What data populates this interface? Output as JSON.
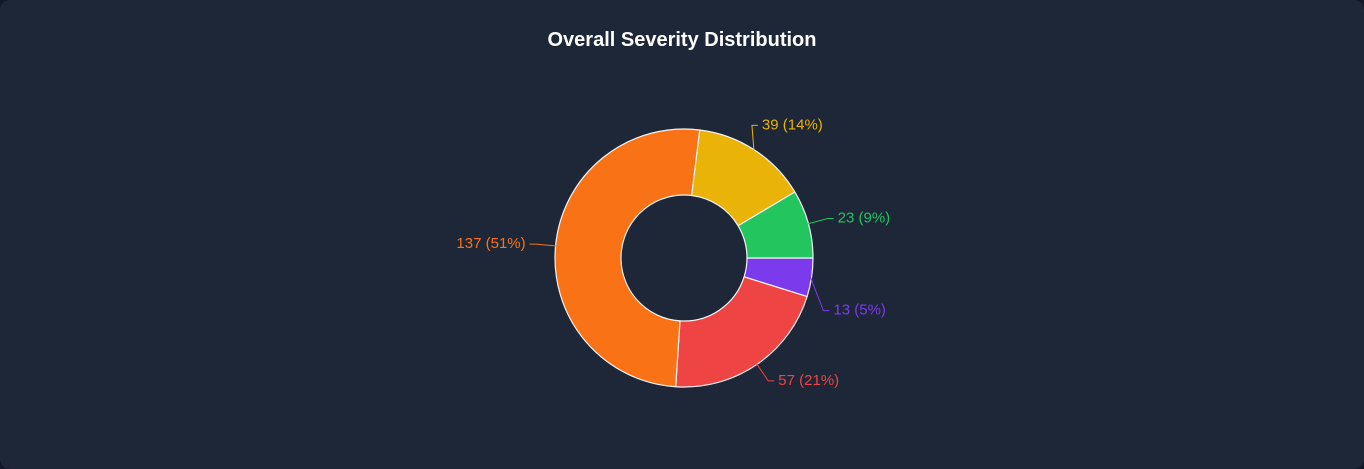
{
  "chart_data": {
    "type": "pie",
    "variant": "donut",
    "title": "Overall Severity Distribution",
    "legend": "none",
    "slices": [
      {
        "value": 13,
        "percent": 5,
        "label": "13 (5%)",
        "color": "#7c3aed"
      },
      {
        "value": 57,
        "percent": 21,
        "label": "57 (21%)",
        "color": "#ef4444"
      },
      {
        "value": 137,
        "percent": 51,
        "label": "137 (51%)",
        "color": "#f97316"
      },
      {
        "value": 39,
        "percent": 14,
        "label": "39 (14%)",
        "color": "#eab308"
      },
      {
        "value": 23,
        "percent": 9,
        "label": "23 (9%)",
        "color": "#22c55e"
      }
    ]
  },
  "theme": {
    "background": "#1e2737",
    "page": "#111827",
    "title_color": "#ffffff",
    "slice_border": "#f3f4f6"
  }
}
